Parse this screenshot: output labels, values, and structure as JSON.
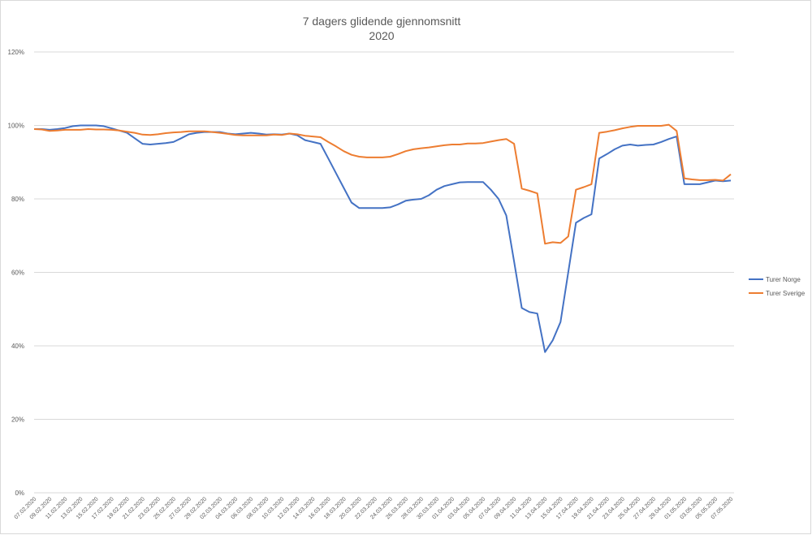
{
  "chart_data": {
    "type": "line",
    "title": "7 dagers glidende gjennomsnitt",
    "subtitle": "2020",
    "categories": [
      "07.02.2020",
      null,
      "09.02.2020",
      null,
      "11.02.2020",
      null,
      "13.02.2020",
      null,
      "15.02.2020",
      null,
      "17.02.2020",
      null,
      "19.02.2020",
      null,
      "21.02.2020",
      null,
      "23.02.2020",
      null,
      "25.02.2020",
      null,
      "27.02.2020",
      null,
      "29.02.2020",
      null,
      "02.03.2020",
      null,
      "04.03.2020",
      null,
      "06.03.2020",
      null,
      "08.03.2020",
      null,
      "10.03.2020",
      null,
      "12.03.2020",
      null,
      "14.03.2020",
      null,
      "16.03.2020",
      null,
      "18.03.2020",
      null,
      "20.03.2020",
      null,
      "22.03.2020",
      null,
      "24.03.2020",
      null,
      "26.03.2020",
      null,
      "28.03.2020",
      null,
      "30.03.2020",
      null,
      "01.04.2020",
      null,
      "03.04.2020",
      null,
      "05.04.2020",
      null,
      "07.04.2020",
      null,
      "09.04.2020",
      null,
      "11.04.2020",
      null,
      "13.04.2020",
      null,
      "15.04.2020",
      null,
      "17.04.2020",
      null,
      "19.04.2020",
      null,
      "21.04.2020",
      null,
      "23.04.2020",
      null,
      "25.04.2020",
      null,
      "27.04.2020",
      null,
      "29.04.2020",
      null,
      "01.05.2020",
      null,
      "03.05.2020",
      null,
      "05.05.2020",
      null,
      "07.05.2020"
    ],
    "series": [
      {
        "name": "Turer Norge",
        "color": "#4472c4",
        "values": [
          99,
          99,
          98.8,
          99,
          99.3,
          99.8,
          100,
          100,
          100,
          99.8,
          99.2,
          98.6,
          98,
          96.5,
          95,
          94.8,
          95,
          95.2,
          95.5,
          96.5,
          97.6,
          98,
          98.2,
          98.2,
          98.2,
          97.8,
          97.6,
          97.8,
          98,
          97.8,
          97.5,
          97.6,
          97.5,
          97.8,
          97.3,
          96,
          95.5,
          95,
          91,
          87,
          83,
          79,
          77.5,
          77.5,
          77.5,
          77.5,
          77.7,
          78.5,
          79.5,
          79.8,
          80,
          81,
          82.5,
          83.5,
          84,
          84.5,
          84.6,
          84.6,
          84.6,
          82.5,
          80,
          75.5,
          63,
          50.3,
          49.2,
          48.8,
          38.3,
          41.5,
          46.5,
          60,
          73.5,
          74.8,
          75.8,
          91,
          92.2,
          93.5,
          94.5,
          94.8,
          94.5,
          94.7,
          94.8,
          95.5,
          96.3,
          97,
          84,
          84,
          84,
          84.5,
          85,
          84.8,
          85
        ]
      },
      {
        "name": "Turer Sverige",
        "color": "#ed7d31",
        "values": [
          99,
          98.9,
          98.5,
          98.6,
          98.8,
          98.8,
          98.8,
          99,
          98.9,
          98.9,
          98.8,
          98.6,
          98.3,
          98,
          97.5,
          97.4,
          97.6,
          97.9,
          98.1,
          98.2,
          98.4,
          98.4,
          98.4,
          98.2,
          98,
          97.7,
          97.4,
          97.3,
          97.3,
          97.3,
          97.3,
          97.5,
          97.4,
          97.8,
          97.6,
          97.2,
          97,
          96.8,
          95.5,
          94.3,
          93,
          92,
          91.5,
          91.3,
          91.3,
          91.3,
          91.5,
          92.2,
          93,
          93.5,
          93.8,
          94,
          94.3,
          94.6,
          94.8,
          94.8,
          95.1,
          95.1,
          95.2,
          95.6,
          96,
          96.3,
          95,
          82.8,
          82.2,
          81.5,
          67.8,
          68.2,
          68,
          69.8,
          82.5,
          83.2,
          84,
          98,
          98.3,
          98.7,
          99.2,
          99.6,
          99.9,
          99.9,
          99.9,
          99.9,
          100.2,
          98.5,
          85.6,
          85.3,
          85.1,
          85.1,
          85.2,
          85,
          86.7
        ]
      }
    ],
    "ylim": [
      0,
      120
    ],
    "yticks": [
      {
        "value": 0,
        "label": "0%"
      },
      {
        "value": 20,
        "label": "20%"
      },
      {
        "value": 40,
        "label": "40%"
      },
      {
        "value": 60,
        "label": "60%"
      },
      {
        "value": 80,
        "label": "80%"
      },
      {
        "value": 100,
        "label": "100%"
      },
      {
        "value": 120,
        "label": "120%"
      }
    ],
    "grid": true,
    "legend": "right"
  }
}
